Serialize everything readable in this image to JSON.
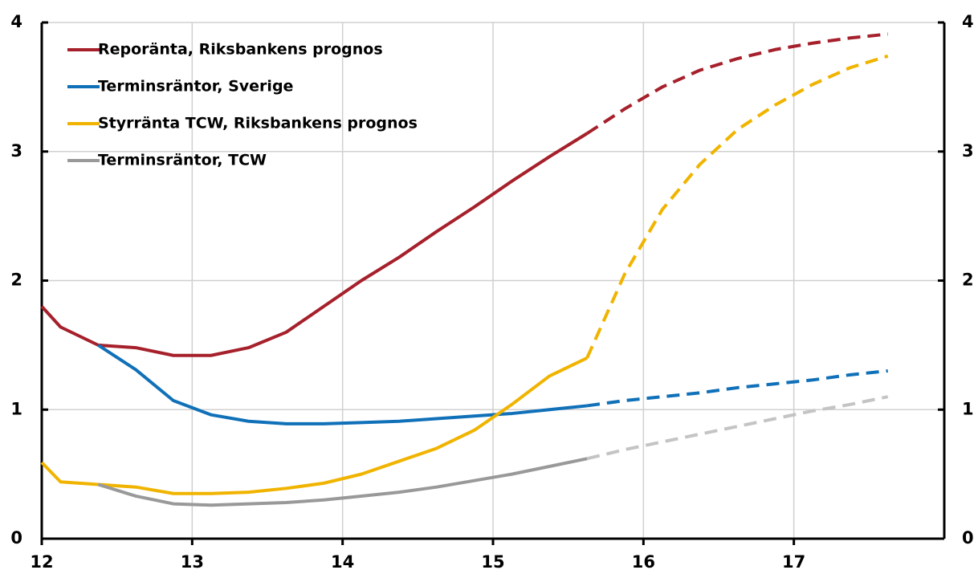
{
  "chart_data": {
    "type": "line",
    "x": [
      12.0,
      12.125,
      12.375,
      12.625,
      12.875,
      13.125,
      13.375,
      13.625,
      13.875,
      14.125,
      14.375,
      14.625,
      14.875,
      15.125,
      15.375,
      15.625,
      15.875,
      16.125,
      16.375,
      16.625,
      16.875,
      17.125,
      17.375,
      17.625
    ],
    "series": [
      {
        "name": "Reporänta, Riksbankens prognos",
        "color": "#a6202b",
        "values": [
          1.8,
          1.64,
          1.5,
          1.48,
          1.42,
          1.42,
          1.48,
          1.6,
          1.8,
          2.0,
          2.18,
          2.38,
          2.57,
          2.77,
          2.96,
          3.14,
          3.33,
          3.5,
          3.63,
          3.72,
          3.79,
          3.84,
          3.88,
          3.91
        ]
      },
      {
        "name": "Terminsräntor, Sverige",
        "color": "#1070b8",
        "values": [
          null,
          null,
          1.5,
          1.31,
          1.07,
          0.96,
          0.91,
          0.89,
          0.89,
          0.9,
          0.91,
          0.93,
          0.95,
          0.97,
          1.0,
          1.03,
          1.07,
          1.1,
          1.13,
          1.17,
          1.2,
          1.23,
          1.27,
          1.3
        ]
      },
      {
        "name": "Styrränta TCW, Riksbankens prognos",
        "color": "#f0b400",
        "values": [
          0.59,
          0.44,
          0.42,
          0.4,
          0.35,
          0.35,
          0.36,
          0.39,
          0.43,
          0.5,
          0.6,
          0.7,
          0.84,
          1.04,
          1.26,
          1.4,
          2.05,
          2.55,
          2.9,
          3.17,
          3.36,
          3.52,
          3.65,
          3.74
        ]
      },
      {
        "name": "Terminsräntor, TCW",
        "color": "#999999",
        "dash_color": "#c4c4c4",
        "values": [
          null,
          null,
          0.42,
          0.33,
          0.27,
          0.26,
          0.27,
          0.28,
          0.3,
          0.33,
          0.36,
          0.4,
          0.45,
          0.5,
          0.56,
          0.62,
          0.69,
          0.75,
          0.81,
          0.87,
          0.93,
          0.99,
          1.04,
          1.1
        ]
      }
    ],
    "forecast_start": 15.625,
    "xlim": [
      12,
      18
    ],
    "xticks": [
      12,
      13,
      14,
      15,
      16,
      17
    ],
    "ylim": [
      0,
      4
    ],
    "yticks": [
      0,
      1,
      2,
      3,
      4
    ],
    "y2lim": [
      0,
      4
    ],
    "y2ticks": [
      0,
      1,
      2,
      3,
      4
    ],
    "grid": true,
    "legend": "upper left"
  }
}
